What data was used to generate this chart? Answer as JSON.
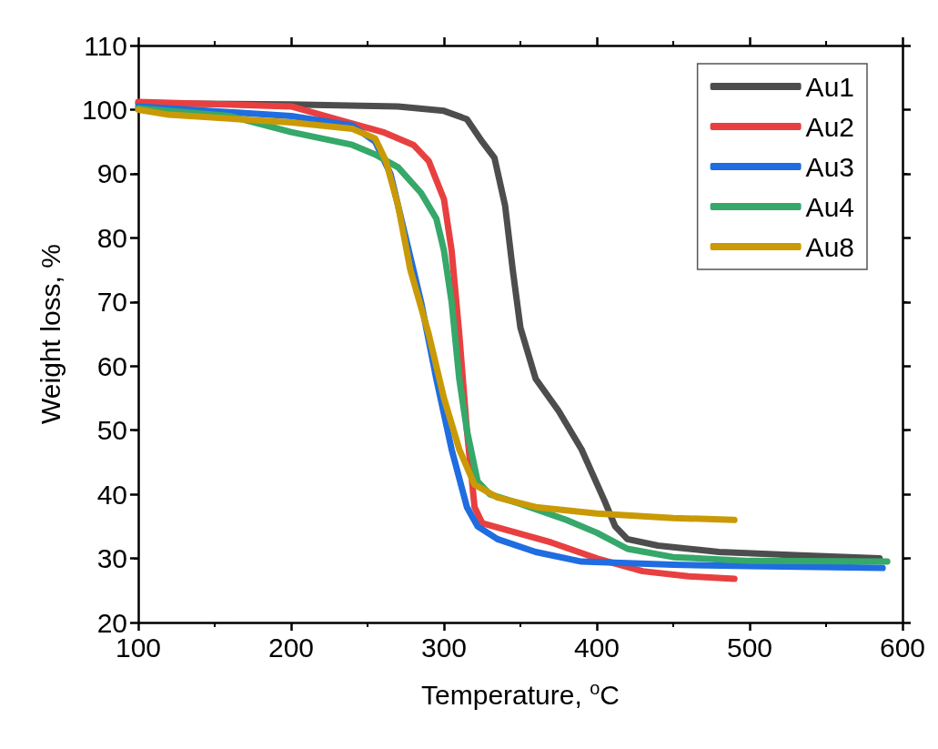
{
  "chart_data": {
    "type": "line",
    "xlabel": "Temperature, $^{o}$C",
    "ylabel": "Weight loss, %",
    "xlim": [
      100,
      600
    ],
    "xticks": [
      100,
      200,
      300,
      400,
      500,
      600
    ],
    "ylim": [
      20,
      110
    ],
    "yticks": [
      20,
      30,
      40,
      50,
      60,
      70,
      80,
      90,
      100,
      110
    ],
    "grid": false,
    "legend": "top right",
    "marker": "none",
    "line_style": "solid",
    "series": [
      {
        "name": "Au1",
        "color": "#4d4d4d",
        "x": [
          100,
          200,
          270,
          300,
          315,
          325,
          333,
          340,
          345,
          350,
          360,
          375,
          390,
          405,
          412,
          420,
          440,
          480,
          530,
          585
        ],
        "values": [
          101,
          100.8,
          100.5,
          99.8,
          98.5,
          95,
          92.5,
          85,
          75,
          66,
          58,
          53,
          47,
          39,
          35,
          33,
          32,
          31,
          30.5,
          30
        ]
      },
      {
        "name": "Au2",
        "color": "#e84040",
        "x": [
          100,
          200,
          230,
          260,
          280,
          290,
          300,
          305,
          310,
          315,
          320,
          325,
          340,
          370,
          400,
          430,
          460,
          490
        ],
        "values": [
          101.2,
          100.5,
          98.5,
          96.5,
          94.5,
          92,
          86,
          78,
          65,
          50,
          38,
          35.5,
          34.5,
          32.5,
          30,
          28,
          27.2,
          26.8
        ]
      },
      {
        "name": "Au3",
        "color": "#1f6de0",
        "x": [
          100,
          200,
          240,
          255,
          265,
          275,
          285,
          295,
          305,
          315,
          322,
          335,
          360,
          390,
          450,
          500,
          587
        ],
        "values": [
          100.5,
          99,
          97.5,
          95,
          90,
          80,
          70,
          58,
          47,
          38,
          35,
          33,
          31,
          29.5,
          29,
          28.8,
          28.5
        ]
      },
      {
        "name": "Au4",
        "color": "#35a86a",
        "x": [
          100,
          160,
          200,
          240,
          255,
          270,
          285,
          295,
          300,
          305,
          310,
          315,
          322,
          330,
          350,
          380,
          400,
          420,
          450,
          500,
          590
        ],
        "values": [
          100.2,
          99,
          96.5,
          94.5,
          93,
          91,
          87,
          83,
          78,
          70,
          58,
          50,
          42,
          40,
          38.5,
          36,
          34,
          31.5,
          30.2,
          29.6,
          29.5
        ]
      },
      {
        "name": "Au8",
        "color": "#c99a06",
        "x": [
          100,
          120,
          200,
          240,
          255,
          262,
          270,
          278,
          290,
          300,
          310,
          320,
          335,
          360,
          400,
          450,
          490
        ],
        "values": [
          100,
          99.2,
          98,
          97,
          95.5,
          92,
          85,
          75,
          65,
          55,
          47,
          41.5,
          39.5,
          38,
          37,
          36.3,
          36
        ]
      }
    ]
  }
}
